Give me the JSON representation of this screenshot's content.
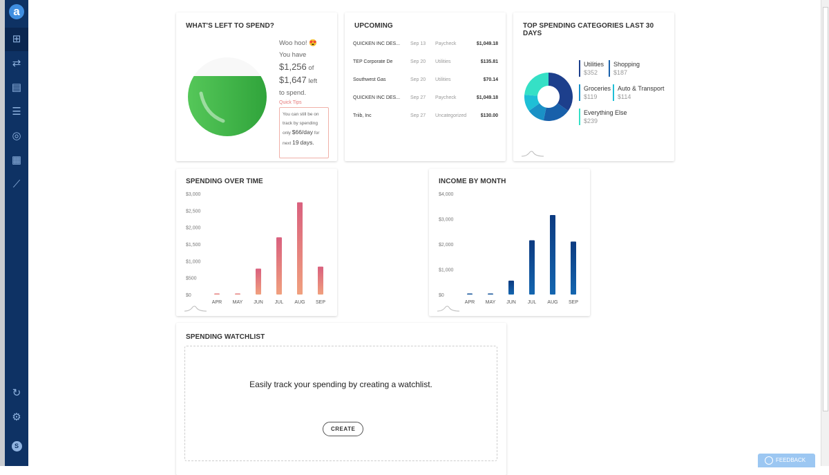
{
  "sidebar": {
    "logo": "a",
    "items": [
      "dashboard-icon",
      "transactions-icon",
      "bills-icon",
      "accounts-icon",
      "planning-icon",
      "reports-icon",
      "investments-icon"
    ],
    "bottom": [
      "refresh-icon",
      "settings-icon",
      "profile-icon"
    ],
    "profile_initial": "S"
  },
  "left_to_spend": {
    "title": "WHAT'S LEFT TO SPEND?",
    "line1": "Woo hoo! 😍",
    "line2": "You have",
    "amount": "$1,256",
    "of": "of",
    "total": "$1,647",
    "left": "left",
    "line3": "to spend.",
    "tips_label": "Quick Tips",
    "tip1": "You can still be on track by spending only",
    "tip_amount": "$66/day",
    "tip2": "for next",
    "tip_days": "19",
    "tip3": "days.",
    "fill_fraction": 0.76
  },
  "upcoming": {
    "title": "UPCOMING",
    "rows": [
      {
        "name": "QUICKEN INC DES...",
        "date": "Sep 13",
        "category": "Paycheck",
        "amount": "$1,049.18"
      },
      {
        "name": "TEP Corporate De",
        "date": "Sep 20",
        "category": "Utilities",
        "amount": "$135.81"
      },
      {
        "name": "Southwest Gas",
        "date": "Sep 20",
        "category": "Utilities",
        "amount": "$70.14"
      },
      {
        "name": "QUICKEN INC DES...",
        "date": "Sep 27",
        "category": "Paycheck",
        "amount": "$1,049.18"
      },
      {
        "name": "Triib, Inc",
        "date": "Sep 27",
        "category": "Uncategorized",
        "amount": "$130.00"
      }
    ]
  },
  "top_spending": {
    "title": "TOP SPENDING CATEGORIES LAST 30 DAYS"
  },
  "watchlist": {
    "title": "SPENDING WATCHLIST",
    "message": "Easily track your spending by creating a watchlist.",
    "create": "CREATE"
  },
  "feedback": "FEEDBACK",
  "chart_data": [
    {
      "type": "pie",
      "title": "TOP SPENDING CATEGORIES LAST 30 DAYS",
      "categories": [
        "Utilities",
        "Shopping",
        "Groceries",
        "Auto & Transport",
        "Everything Else"
      ],
      "values": [
        352,
        187,
        119,
        114,
        239
      ],
      "labels": [
        "$352",
        "$187",
        "$119",
        "$114",
        "$239"
      ],
      "colors": [
        "#1d3f8c",
        "#1860aa",
        "#1a91c6",
        "#1ebfd6",
        "#35e0c6"
      ],
      "donut": true
    },
    {
      "type": "bar",
      "title": "SPENDING OVER TIME",
      "categories": [
        "APR",
        "MAY",
        "JUN",
        "JUL",
        "AUG",
        "SEP"
      ],
      "values": [
        20,
        20,
        770,
        1700,
        2740,
        830
      ],
      "ylim": [
        0,
        3000
      ],
      "yticks": [
        "$3,000",
        "$2,500",
        "$2,000",
        "$1,500",
        "$1,000",
        "$500",
        "$0"
      ],
      "colors": [
        "#d9607e",
        "#f0a07e"
      ]
    },
    {
      "type": "bar",
      "title": "INCOME BY MONTH",
      "categories": [
        "APR",
        "MAY",
        "JUN",
        "JUL",
        "AUG",
        "SEP"
      ],
      "values": [
        20,
        20,
        550,
        2150,
        3150,
        2100
      ],
      "ylim": [
        0,
        4000
      ],
      "yticks": [
        "$4,000",
        "$3,000",
        "$2,000",
        "$1,000",
        "$0"
      ],
      "colors": [
        "#0c3a80",
        "#1466b0"
      ]
    }
  ]
}
